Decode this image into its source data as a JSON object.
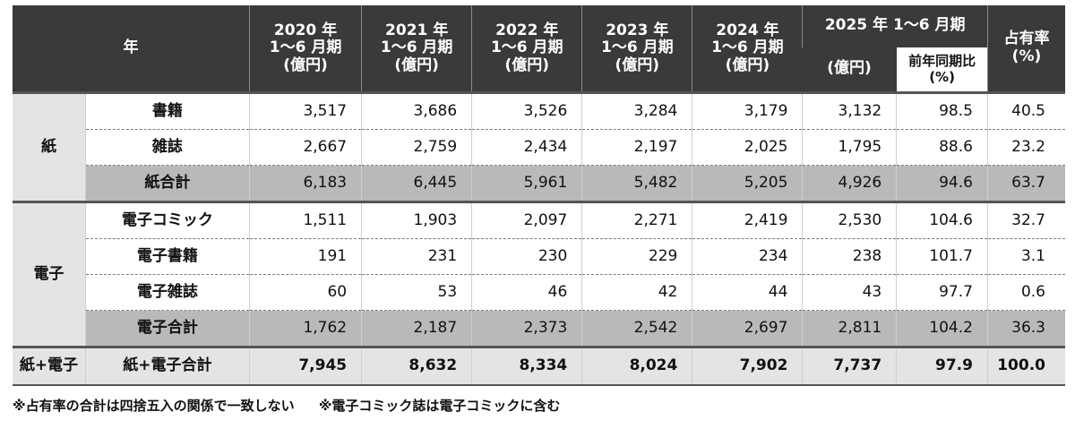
{
  "header": {
    "year_label": "年",
    "years": [
      {
        "line1": "2020 年",
        "line2": "1〜6 月期",
        "line3": "(億円)"
      },
      {
        "line1": "2021 年",
        "line2": "1〜6 月期",
        "line3": "(億円)"
      },
      {
        "line1": "2022 年",
        "line2": "1〜6 月期",
        "line3": "(億円)"
      },
      {
        "line1": "2023 年",
        "line2": "1〜6 月期",
        "line3": "(億円)"
      },
      {
        "line1": "2024 年",
        "line2": "1〜6 月期",
        "line3": "(億円)"
      }
    ],
    "current_period": "2025 年 1〜6 月期",
    "current_unit": "(億円)",
    "yoy_line1": "前年同期比",
    "yoy_line2": "(%)",
    "share_line1": "占有率",
    "share_line2": "(%)"
  },
  "groups": {
    "paper": "紙",
    "digital": "電子",
    "total": "紙+電子"
  },
  "rows": [
    {
      "label": "書籍",
      "values": [
        "3,517",
        "3,686",
        "3,526",
        "3,284",
        "3,179",
        "3,132",
        "98.5",
        "40.5"
      ]
    },
    {
      "label": "雑誌",
      "values": [
        "2,667",
        "2,759",
        "2,434",
        "2,197",
        "2,025",
        "1,795",
        "88.6",
        "23.2"
      ]
    },
    {
      "label": "紙合計",
      "values": [
        "6,183",
        "6,445",
        "5,961",
        "5,482",
        "5,205",
        "4,926",
        "94.6",
        "63.7"
      ]
    },
    {
      "label": "電子コミック",
      "values": [
        "1,511",
        "1,903",
        "2,097",
        "2,271",
        "2,419",
        "2,530",
        "104.6",
        "32.7"
      ]
    },
    {
      "label": "電子書籍",
      "values": [
        "191",
        "231",
        "230",
        "229",
        "234",
        "238",
        "101.7",
        "3.1"
      ]
    },
    {
      "label": "電子雑誌",
      "values": [
        "60",
        "53",
        "46",
        "42",
        "44",
        "43",
        "97.7",
        "0.6"
      ]
    },
    {
      "label": "電子合計",
      "values": [
        "1,762",
        "2,187",
        "2,373",
        "2,542",
        "2,697",
        "2,811",
        "104.2",
        "36.3"
      ]
    },
    {
      "label": "紙+電子合計",
      "values": [
        "7,945",
        "8,632",
        "8,334",
        "8,024",
        "7,902",
        "7,737",
        "97.9",
        "100.0"
      ]
    }
  ],
  "notes": [
    "※占有率の合計は四捨五入の関係で一致しない",
    "※電子コミック誌は電子コミックに含む"
  ]
}
